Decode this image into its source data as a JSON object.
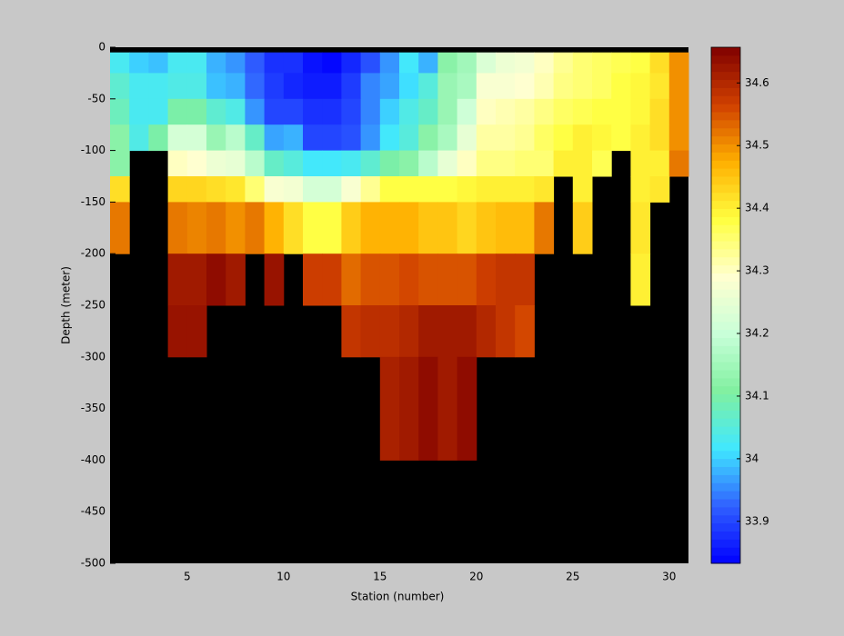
{
  "chart_data": {
    "type": "heatmap",
    "xlabel": "Station (number)",
    "ylabel": "Depth (meter)",
    "x_edges": [
      1,
      2,
      3,
      4,
      5,
      6,
      7,
      8,
      9,
      10,
      11,
      12,
      13,
      14,
      15,
      16,
      17,
      18,
      19,
      20,
      21,
      22,
      23,
      24,
      25,
      26,
      27,
      28,
      29,
      30,
      31
    ],
    "y_edges": [
      -5,
      -25,
      -50,
      -75,
      -100,
      -125,
      -150,
      -200,
      -250,
      -300,
      -400
    ],
    "values": [
      [
        34.03,
        34.0,
        33.99,
        34.03,
        34.03,
        33.98,
        33.96,
        33.92,
        33.88,
        33.88,
        33.85,
        33.84,
        33.87,
        33.91,
        33.96,
        34.02,
        33.98,
        34.12,
        34.15,
        34.23,
        34.26,
        34.27,
        34.3,
        34.33,
        34.35,
        34.36,
        34.37,
        34.38,
        34.42,
        34.5
      ],
      [
        34.06,
        34.03,
        34.03,
        34.04,
        34.04,
        33.99,
        33.98,
        33.93,
        33.89,
        33.87,
        33.86,
        33.86,
        33.89,
        33.95,
        33.97,
        34.01,
        34.05,
        34.14,
        34.16,
        34.28,
        34.28,
        34.29,
        34.31,
        34.34,
        34.35,
        34.36,
        34.38,
        34.39,
        34.41,
        34.5
      ],
      [
        34.08,
        34.03,
        34.03,
        34.1,
        34.1,
        34.06,
        34.04,
        33.96,
        33.9,
        33.9,
        33.88,
        33.88,
        33.9,
        33.95,
        34.0,
        34.04,
        34.07,
        34.14,
        34.21,
        34.3,
        34.31,
        34.32,
        34.34,
        34.36,
        34.37,
        34.38,
        34.38,
        34.39,
        34.42,
        34.5
      ],
      [
        34.12,
        34.04,
        34.1,
        34.22,
        34.22,
        34.14,
        34.18,
        34.07,
        33.97,
        33.98,
        33.9,
        33.9,
        33.91,
        33.96,
        34.02,
        34.05,
        34.12,
        34.16,
        34.25,
        34.32,
        34.32,
        34.33,
        34.36,
        34.38,
        34.4,
        34.39,
        34.38,
        34.4,
        34.42,
        34.5
      ],
      [
        34.12,
        null,
        null,
        34.3,
        34.29,
        34.26,
        34.25,
        34.18,
        34.07,
        34.05,
        34.02,
        34.02,
        34.03,
        34.06,
        34.1,
        34.12,
        34.18,
        34.25,
        34.3,
        34.34,
        34.34,
        34.35,
        34.35,
        34.4,
        34.4,
        34.37,
        null,
        34.4,
        34.4,
        34.52
      ],
      [
        34.42,
        null,
        null,
        34.43,
        34.43,
        34.42,
        34.41,
        34.35,
        34.28,
        34.27,
        34.22,
        34.22,
        34.28,
        34.33,
        34.38,
        34.38,
        34.38,
        34.38,
        34.39,
        34.4,
        34.4,
        34.4,
        34.41,
        null,
        34.4,
        null,
        null,
        34.4,
        34.41,
        null
      ],
      [
        34.52,
        null,
        null,
        34.52,
        34.51,
        34.52,
        34.5,
        34.52,
        34.47,
        34.42,
        34.38,
        34.38,
        34.44,
        34.47,
        34.47,
        34.47,
        34.45,
        34.45,
        34.43,
        34.45,
        34.46,
        34.46,
        34.52,
        null,
        34.44,
        null,
        null,
        34.41,
        null,
        null
      ],
      [
        null,
        null,
        null,
        34.62,
        34.62,
        34.64,
        34.62,
        null,
        34.63,
        null,
        34.57,
        34.57,
        34.53,
        34.55,
        34.55,
        34.56,
        34.55,
        34.55,
        34.55,
        34.57,
        34.58,
        34.58,
        null,
        null,
        null,
        null,
        null,
        34.4,
        null,
        null
      ],
      [
        null,
        null,
        null,
        34.63,
        34.63,
        null,
        null,
        null,
        null,
        null,
        null,
        null,
        34.58,
        34.59,
        34.59,
        34.6,
        34.62,
        34.62,
        34.62,
        34.6,
        34.58,
        34.56,
        null,
        null,
        null,
        null,
        null,
        null,
        null,
        null
      ],
      [
        null,
        null,
        null,
        null,
        null,
        null,
        null,
        null,
        null,
        null,
        null,
        null,
        null,
        null,
        34.61,
        34.62,
        34.64,
        34.62,
        34.64,
        null,
        null,
        null,
        null,
        null,
        null,
        null,
        null,
        null,
        null,
        null
      ]
    ],
    "xlim": [
      1,
      31
    ],
    "xticks": [
      5,
      10,
      15,
      20,
      25,
      30
    ],
    "ylim": [
      -500,
      0
    ],
    "yticks": [
      0,
      -50,
      -100,
      -150,
      -200,
      -250,
      -300,
      -350,
      -400,
      -450,
      -500
    ],
    "clim": [
      33.833,
      34.657
    ],
    "cticks": [
      33.9,
      34,
      34.1,
      34.2,
      34.3,
      34.4,
      34.5,
      34.6
    ],
    "colormap": [
      "#0000ff",
      "#3060ff",
      "#40e8ff",
      "#80f0a0",
      "#c8ffd8",
      "#ffffd0",
      "#ffff40",
      "#ffb000",
      "#d04000",
      "#800000"
    ],
    "background": "#000000"
  }
}
